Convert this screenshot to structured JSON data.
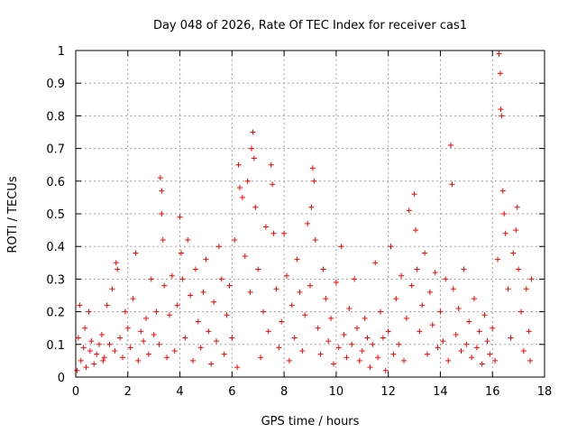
{
  "chart_data": {
    "type": "scatter",
    "title": "Day 048 of 2026, Rate Of TEC Index for receiver cas1",
    "xlabel": "GPS time / hours",
    "ylabel": "ROTI / TECUs",
    "xlim": [
      0,
      18
    ],
    "ylim": [
      0,
      1
    ],
    "xticks": [
      0,
      2,
      4,
      6,
      8,
      10,
      12,
      14,
      16,
      18
    ],
    "yticks": [
      0,
      0.1,
      0.2,
      0.3,
      0.4,
      0.5,
      0.6,
      0.7,
      0.8,
      0.9,
      1
    ],
    "ytick_labels": [
      "0",
      "0.1",
      "0.2",
      "0.3",
      "0.4",
      "0.5",
      "0.6",
      "0.7",
      "0.8",
      "0.9",
      "1"
    ],
    "grid": true,
    "marker": "+",
    "color": "#ff0000",
    "series": [
      {
        "name": "cas1",
        "points": [
          [
            0.05,
            0.02
          ],
          [
            0.1,
            0.12
          ],
          [
            0.15,
            0.22
          ],
          [
            0.2,
            0.05
          ],
          [
            0.3,
            0.09
          ],
          [
            0.35,
            0.15
          ],
          [
            0.4,
            0.03
          ],
          [
            0.5,
            0.2
          ],
          [
            0.55,
            0.08
          ],
          [
            0.6,
            0.11
          ],
          [
            0.7,
            0.04
          ],
          [
            0.8,
            0.07
          ],
          [
            0.9,
            0.1
          ],
          [
            1.0,
            0.13
          ],
          [
            1.05,
            0.05
          ],
          [
            1.1,
            0.06
          ],
          [
            1.2,
            0.22
          ],
          [
            1.3,
            0.1
          ],
          [
            1.4,
            0.27
          ],
          [
            1.5,
            0.08
          ],
          [
            1.55,
            0.35
          ],
          [
            1.6,
            0.33
          ],
          [
            1.7,
            0.12
          ],
          [
            1.8,
            0.06
          ],
          [
            1.9,
            0.2
          ],
          [
            2.0,
            0.15
          ],
          [
            2.1,
            0.09
          ],
          [
            2.2,
            0.24
          ],
          [
            2.3,
            0.38
          ],
          [
            2.4,
            0.05
          ],
          [
            2.5,
            0.14
          ],
          [
            2.6,
            0.11
          ],
          [
            2.7,
            0.18
          ],
          [
            2.8,
            0.07
          ],
          [
            2.9,
            0.3
          ],
          [
            3.0,
            0.13
          ],
          [
            3.1,
            0.2
          ],
          [
            3.2,
            0.1
          ],
          [
            3.25,
            0.61
          ],
          [
            3.3,
            0.57
          ],
          [
            3.3,
            0.5
          ],
          [
            3.35,
            0.42
          ],
          [
            3.4,
            0.28
          ],
          [
            3.5,
            0.06
          ],
          [
            3.6,
            0.19
          ],
          [
            3.7,
            0.31
          ],
          [
            3.8,
            0.08
          ],
          [
            3.9,
            0.22
          ],
          [
            4.0,
            0.49
          ],
          [
            4.05,
            0.38
          ],
          [
            4.1,
            0.3
          ],
          [
            4.2,
            0.12
          ],
          [
            4.3,
            0.42
          ],
          [
            4.4,
            0.25
          ],
          [
            4.5,
            0.05
          ],
          [
            4.6,
            0.33
          ],
          [
            4.7,
            0.17
          ],
          [
            4.8,
            0.09
          ],
          [
            4.9,
            0.26
          ],
          [
            5.0,
            0.36
          ],
          [
            5.1,
            0.14
          ],
          [
            5.2,
            0.04
          ],
          [
            5.3,
            0.23
          ],
          [
            5.4,
            0.11
          ],
          [
            5.5,
            0.4
          ],
          [
            5.6,
            0.3
          ],
          [
            5.7,
            0.07
          ],
          [
            5.8,
            0.19
          ],
          [
            5.9,
            0.28
          ],
          [
            6.0,
            0.12
          ],
          [
            6.1,
            0.42
          ],
          [
            6.2,
            0.03
          ],
          [
            6.25,
            0.65
          ],
          [
            6.3,
            0.58
          ],
          [
            6.4,
            0.55
          ],
          [
            6.5,
            0.37
          ],
          [
            6.6,
            0.6
          ],
          [
            6.7,
            0.26
          ],
          [
            6.75,
            0.7
          ],
          [
            6.8,
            0.75
          ],
          [
            6.85,
            0.67
          ],
          [
            6.9,
            0.52
          ],
          [
            7.0,
            0.33
          ],
          [
            7.1,
            0.06
          ],
          [
            7.2,
            0.2
          ],
          [
            7.3,
            0.46
          ],
          [
            7.4,
            0.14
          ],
          [
            7.5,
            0.65
          ],
          [
            7.55,
            0.59
          ],
          [
            7.6,
            0.44
          ],
          [
            7.7,
            0.27
          ],
          [
            7.8,
            0.09
          ],
          [
            7.9,
            0.17
          ],
          [
            8.0,
            0.44
          ],
          [
            8.1,
            0.31
          ],
          [
            8.2,
            0.05
          ],
          [
            8.3,
            0.22
          ],
          [
            8.4,
            0.12
          ],
          [
            8.5,
            0.36
          ],
          [
            8.6,
            0.26
          ],
          [
            8.7,
            0.08
          ],
          [
            8.8,
            0.19
          ],
          [
            8.9,
            0.47
          ],
          [
            9.0,
            0.28
          ],
          [
            9.05,
            0.52
          ],
          [
            9.1,
            0.64
          ],
          [
            9.15,
            0.6
          ],
          [
            9.2,
            0.42
          ],
          [
            9.3,
            0.15
          ],
          [
            9.4,
            0.07
          ],
          [
            9.5,
            0.33
          ],
          [
            9.6,
            0.24
          ],
          [
            9.7,
            0.11
          ],
          [
            9.8,
            0.18
          ],
          [
            9.9,
            0.04
          ],
          [
            10.0,
            0.29
          ],
          [
            10.1,
            0.09
          ],
          [
            10.2,
            0.4
          ],
          [
            10.3,
            0.13
          ],
          [
            10.4,
            0.06
          ],
          [
            10.5,
            0.21
          ],
          [
            10.6,
            0.1
          ],
          [
            10.7,
            0.3
          ],
          [
            10.8,
            0.15
          ],
          [
            10.9,
            0.05
          ],
          [
            11.0,
            0.08
          ],
          [
            11.1,
            0.18
          ],
          [
            11.2,
            0.12
          ],
          [
            11.3,
            0.03
          ],
          [
            11.4,
            0.1
          ],
          [
            11.5,
            0.35
          ],
          [
            11.6,
            0.06
          ],
          [
            11.7,
            0.2
          ],
          [
            11.8,
            0.12
          ],
          [
            11.9,
            0.02
          ],
          [
            12.0,
            0.14
          ],
          [
            12.1,
            0.4
          ],
          [
            12.2,
            0.07
          ],
          [
            12.3,
            0.24
          ],
          [
            12.4,
            0.1
          ],
          [
            12.5,
            0.31
          ],
          [
            12.6,
            0.05
          ],
          [
            12.7,
            0.18
          ],
          [
            12.8,
            0.51
          ],
          [
            12.9,
            0.28
          ],
          [
            13.0,
            0.56
          ],
          [
            13.05,
            0.45
          ],
          [
            13.1,
            0.33
          ],
          [
            13.2,
            0.14
          ],
          [
            13.3,
            0.22
          ],
          [
            13.4,
            0.38
          ],
          [
            13.5,
            0.07
          ],
          [
            13.6,
            0.26
          ],
          [
            13.7,
            0.16
          ],
          [
            13.8,
            0.32
          ],
          [
            13.9,
            0.09
          ],
          [
            14.0,
            0.2
          ],
          [
            14.1,
            0.11
          ],
          [
            14.2,
            0.3
          ],
          [
            14.3,
            0.05
          ],
          [
            14.4,
            0.71
          ],
          [
            14.45,
            0.59
          ],
          [
            14.5,
            0.27
          ],
          [
            14.6,
            0.13
          ],
          [
            14.7,
            0.21
          ],
          [
            14.8,
            0.08
          ],
          [
            14.9,
            0.33
          ],
          [
            15.0,
            0.1
          ],
          [
            15.1,
            0.17
          ],
          [
            15.2,
            0.06
          ],
          [
            15.3,
            0.24
          ],
          [
            15.4,
            0.09
          ],
          [
            15.5,
            0.14
          ],
          [
            15.6,
            0.04
          ],
          [
            15.7,
            0.19
          ],
          [
            15.8,
            0.11
          ],
          [
            15.9,
            0.07
          ],
          [
            16.0,
            0.15
          ],
          [
            16.1,
            0.05
          ],
          [
            16.2,
            0.36
          ],
          [
            16.25,
            0.99
          ],
          [
            16.3,
            0.93
          ],
          [
            16.32,
            0.82
          ],
          [
            16.35,
            0.8
          ],
          [
            16.4,
            0.57
          ],
          [
            16.45,
            0.5
          ],
          [
            16.5,
            0.44
          ],
          [
            16.6,
            0.27
          ],
          [
            16.7,
            0.12
          ],
          [
            16.8,
            0.38
          ],
          [
            16.9,
            0.45
          ],
          [
            16.95,
            0.52
          ],
          [
            17.0,
            0.33
          ],
          [
            17.1,
            0.2
          ],
          [
            17.2,
            0.08
          ],
          [
            17.3,
            0.27
          ],
          [
            17.4,
            0.14
          ],
          [
            17.45,
            0.05
          ],
          [
            17.5,
            0.3
          ]
        ]
      }
    ]
  }
}
